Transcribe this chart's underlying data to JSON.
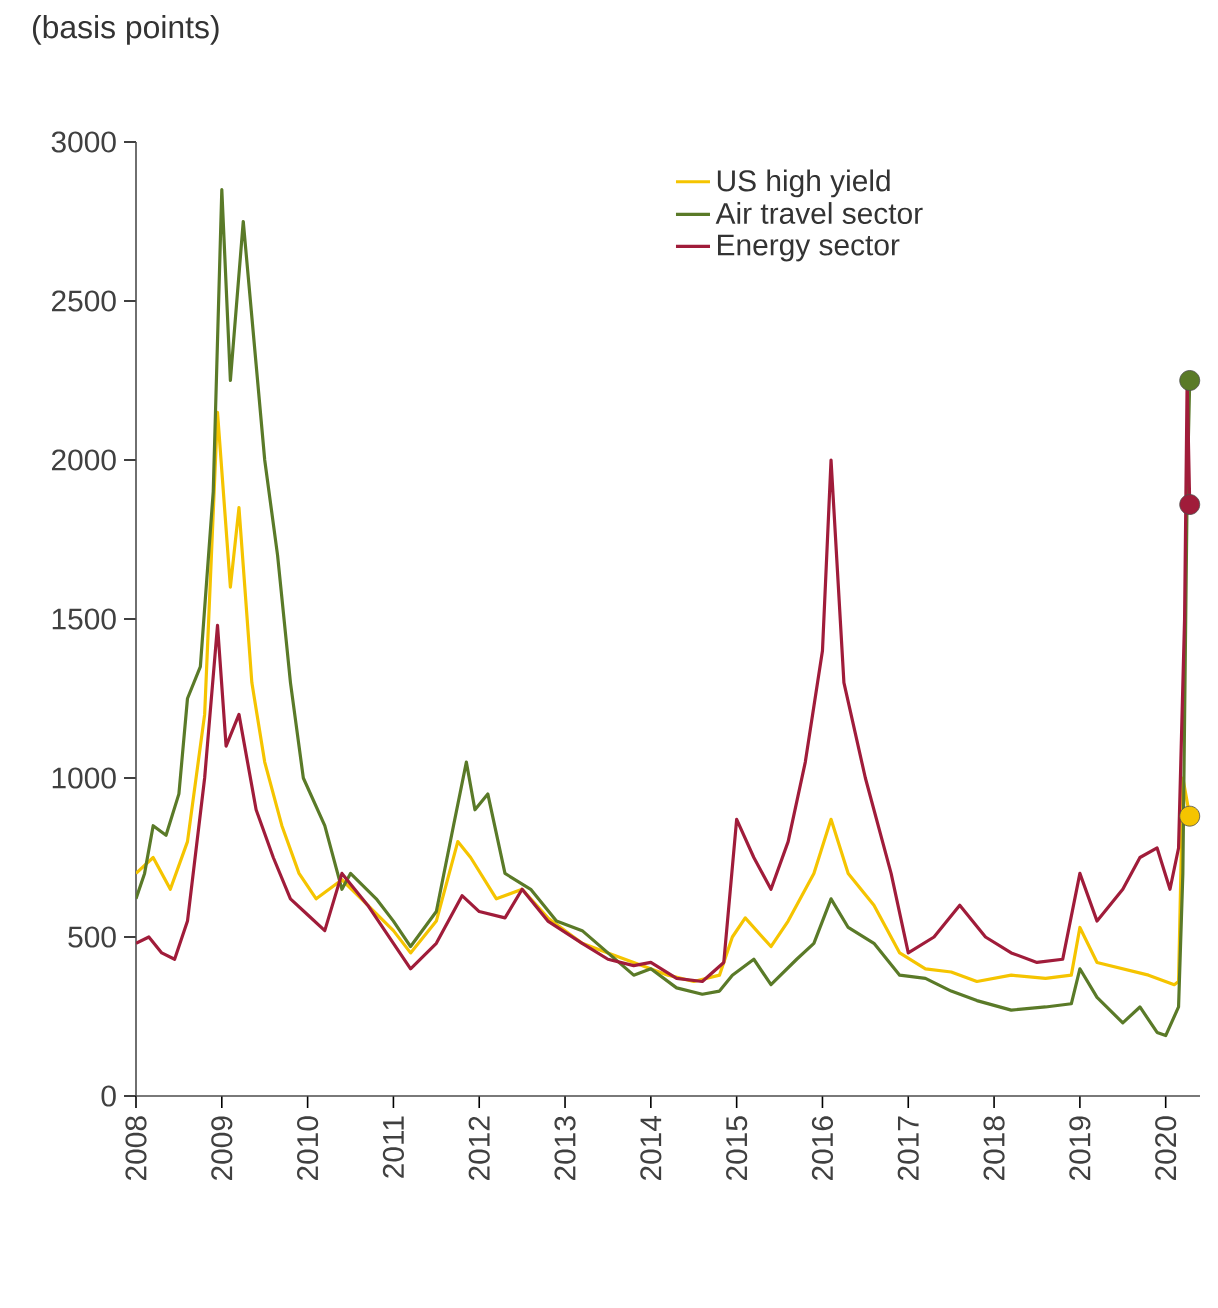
{
  "chart_data": {
    "type": "line",
    "ylabel": "(basis points)",
    "xlim": [
      2008,
      2020.4
    ],
    "xticks": [
      2008,
      2009,
      2010,
      2011,
      2012,
      2013,
      2014,
      2015,
      2016,
      2017,
      2018,
      2019,
      2020
    ],
    "ylim": [
      0,
      3000
    ],
    "yticks": [
      0,
      500,
      1000,
      1500,
      2000,
      2500,
      3000
    ],
    "grid": false,
    "legend": "top right",
    "marker": "none",
    "line_style": "solid",
    "series": [
      {
        "name": "US high yield",
        "color": "#f5c400",
        "x": [
          2008.0,
          2008.2,
          2008.4,
          2008.6,
          2008.8,
          2008.95,
          2009.1,
          2009.2,
          2009.35,
          2009.5,
          2009.7,
          2009.9,
          2010.1,
          2010.4,
          2010.7,
          2011.0,
          2011.2,
          2011.5,
          2011.75,
          2011.9,
          2012.2,
          2012.5,
          2012.8,
          2013.2,
          2013.5,
          2013.8,
          2014.2,
          2014.5,
          2014.8,
          2014.95,
          2015.1,
          2015.4,
          2015.6,
          2015.9,
          2016.1,
          2016.3,
          2016.6,
          2016.9,
          2017.2,
          2017.5,
          2017.8,
          2018.2,
          2018.6,
          2018.9,
          2019.0,
          2019.2,
          2019.5,
          2019.8,
          2020.1,
          2020.15,
          2020.2,
          2020.28
        ],
        "values": [
          700,
          750,
          650,
          800,
          1200,
          2150,
          1600,
          1850,
          1300,
          1050,
          850,
          700,
          620,
          680,
          600,
          520,
          450,
          550,
          800,
          750,
          620,
          650,
          560,
          480,
          450,
          420,
          380,
          360,
          380,
          500,
          560,
          470,
          550,
          700,
          870,
          700,
          600,
          450,
          400,
          390,
          360,
          380,
          370,
          380,
          530,
          420,
          400,
          380,
          350,
          360,
          1000,
          880
        ]
      },
      {
        "name": "Air travel sector",
        "color": "#5a7a28",
        "x": [
          2008.0,
          2008.1,
          2008.2,
          2008.35,
          2008.5,
          2008.6,
          2008.75,
          2008.9,
          2009.0,
          2009.1,
          2009.25,
          2009.4,
          2009.5,
          2009.65,
          2009.8,
          2009.95,
          2010.2,
          2010.4,
          2010.5,
          2010.8,
          2011.0,
          2011.2,
          2011.5,
          2011.7,
          2011.85,
          2011.95,
          2012.1,
          2012.3,
          2012.6,
          2012.9,
          2013.2,
          2013.5,
          2013.8,
          2014.0,
          2014.3,
          2014.6,
          2014.8,
          2014.95,
          2015.2,
          2015.4,
          2015.7,
          2015.9,
          2016.1,
          2016.3,
          2016.6,
          2016.9,
          2017.2,
          2017.5,
          2017.8,
          2018.2,
          2018.6,
          2018.9,
          2019.0,
          2019.2,
          2019.5,
          2019.7,
          2019.9,
          2020.0,
          2020.15,
          2020.2,
          2020.25,
          2020.28
        ],
        "values": [
          620,
          700,
          850,
          820,
          950,
          1250,
          1350,
          1900,
          2850,
          2250,
          2750,
          2300,
          2000,
          1700,
          1300,
          1000,
          850,
          650,
          700,
          620,
          550,
          470,
          580,
          850,
          1050,
          900,
          950,
          700,
          650,
          550,
          520,
          450,
          380,
          400,
          340,
          320,
          330,
          380,
          430,
          350,
          430,
          480,
          620,
          530,
          480,
          380,
          370,
          330,
          300,
          270,
          280,
          290,
          400,
          310,
          230,
          280,
          200,
          190,
          280,
          700,
          1900,
          2250
        ]
      },
      {
        "name": "Energy sector",
        "color": "#a01c3a",
        "x": [
          2008.0,
          2008.15,
          2008.3,
          2008.45,
          2008.6,
          2008.8,
          2008.95,
          2009.05,
          2009.2,
          2009.4,
          2009.6,
          2009.8,
          2010.0,
          2010.2,
          2010.4,
          2010.7,
          2011.0,
          2011.2,
          2011.5,
          2011.8,
          2012.0,
          2012.3,
          2012.5,
          2012.8,
          2013.2,
          2013.5,
          2013.8,
          2014.0,
          2014.3,
          2014.6,
          2014.85,
          2015.0,
          2015.2,
          2015.4,
          2015.6,
          2015.8,
          2016.0,
          2016.1,
          2016.25,
          2016.5,
          2016.8,
          2017.0,
          2017.3,
          2017.6,
          2017.9,
          2018.2,
          2018.5,
          2018.8,
          2019.0,
          2019.2,
          2019.5,
          2019.7,
          2019.9,
          2020.05,
          2020.15,
          2020.22,
          2020.25,
          2020.28
        ],
        "values": [
          480,
          500,
          450,
          430,
          550,
          1000,
          1480,
          1100,
          1200,
          900,
          750,
          620,
          570,
          520,
          700,
          600,
          480,
          400,
          480,
          630,
          580,
          560,
          650,
          550,
          480,
          430,
          410,
          420,
          370,
          360,
          420,
          870,
          750,
          650,
          800,
          1050,
          1400,
          2000,
          1300,
          1000,
          700,
          450,
          500,
          600,
          500,
          450,
          420,
          430,
          700,
          550,
          650,
          750,
          780,
          650,
          780,
          1500,
          2250,
          1860
        ]
      },
      {
        "type": "scatter",
        "marker": "circle",
        "x": [
          2020.28,
          2020.28,
          2020.28
        ],
        "values": [
          880,
          2250,
          1860
        ],
        "colors": [
          "#f5c400",
          "#5a7a28",
          "#a01c3a"
        ]
      }
    ]
  }
}
